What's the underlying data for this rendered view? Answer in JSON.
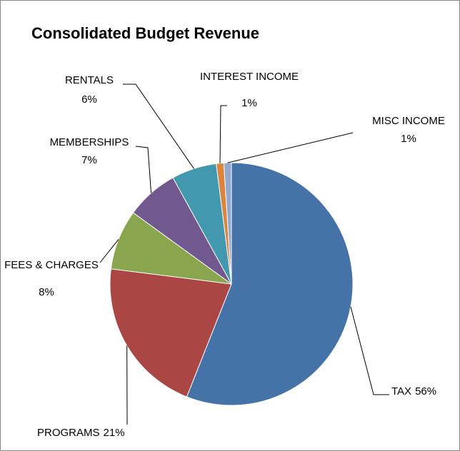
{
  "chart_data": {
    "type": "pie",
    "title": "Consolidated Budget Revenue",
    "categories": [
      "TAX",
      "PROGRAMS",
      "FEES & CHARGES",
      "MEMBERSHIPS",
      "RENTALS",
      "INTEREST INCOME",
      "MISC INCOME"
    ],
    "values": [
      56,
      21,
      8,
      7,
      6,
      1,
      1
    ],
    "value_labels": [
      "56%",
      "21%",
      "8%",
      "7%",
      "6%",
      "1%",
      "1%"
    ],
    "colors": [
      "#4572a7",
      "#aa4643",
      "#89a54e",
      "#71588f",
      "#4198af",
      "#db843d",
      "#93a9cf"
    ]
  }
}
